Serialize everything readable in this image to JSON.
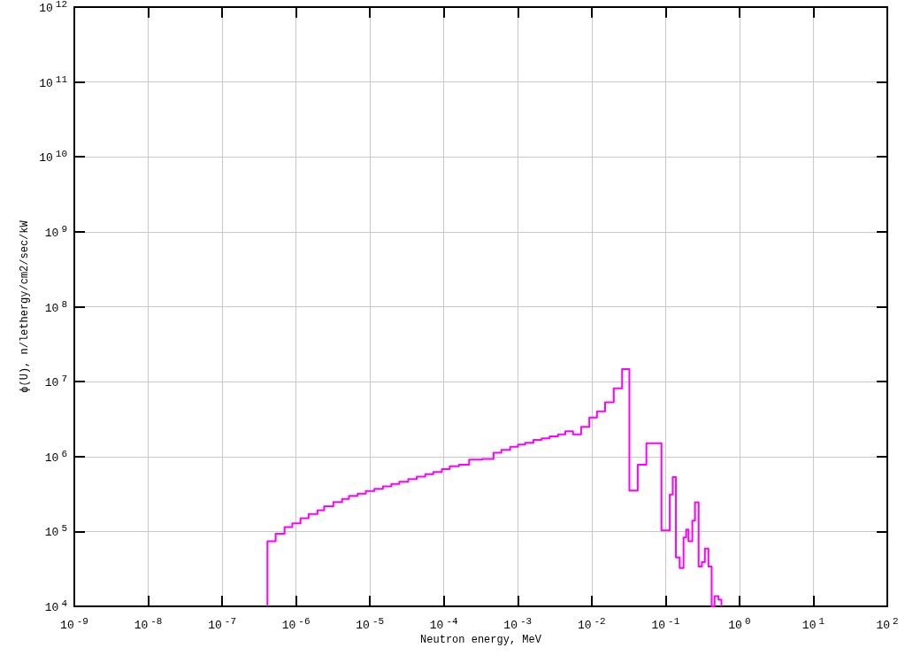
{
  "chart_data": {
    "type": "histogram",
    "xlabel": "Neutron energy, MeV",
    "ylabel": "ϕ(U), n/lethergy/cm2/sec/kW",
    "log": "xy",
    "grid": true,
    "xlim": [
      1e-09,
      100
    ],
    "ylim": [
      10000,
      1000000000000.0
    ],
    "xticks": [
      {
        "value": 1e-09,
        "label": "10$^{-9}$"
      },
      {
        "value": 1e-08,
        "label": "10$^{-8}$"
      },
      {
        "value": 1e-07,
        "label": "10$^{-7}$"
      },
      {
        "value": 1e-06,
        "label": "10$^{-6}$"
      },
      {
        "value": 1e-05,
        "label": "10$^{-5}$"
      },
      {
        "value": 0.0001,
        "label": "10$^{-4}$"
      },
      {
        "value": 0.001,
        "label": "10$^{-3}$"
      },
      {
        "value": 0.01,
        "label": "10$^{-2}$"
      },
      {
        "value": 0.1,
        "label": "10$^{-1}$"
      },
      {
        "value": 1,
        "label": "10$^{0}$"
      },
      {
        "value": 10,
        "label": "10$^{1}$"
      },
      {
        "value": 100,
        "label": "10$^{2}$"
      }
    ],
    "yticks": [
      {
        "value": 10000,
        "label": "10$^{4}$"
      },
      {
        "value": 100000,
        "label": "10$^{5}$"
      },
      {
        "value": 1000000,
        "label": "10$^{6}$"
      },
      {
        "value": 10000000,
        "label": "10$^{7}$"
      },
      {
        "value": 100000000,
        "label": "10$^{8}$"
      },
      {
        "value": 1000000000,
        "label": "10$^{9}$"
      },
      {
        "value": 10000000000,
        "label": "10$^{10}$"
      },
      {
        "value": 100000000000,
        "label": "10$^{11}$"
      },
      {
        "value": 1000000000000,
        "label": "10$^{12}$"
      }
    ],
    "color": "#ff00ff",
    "bins": [
      4.1e-07,
      5.3e-07,
      7e-07,
      8.9e-07,
      1.15e-06,
      1.48e-06,
      1.95e-06,
      2.4e-06,
      3.2e-06,
      4.2e-06,
      5.2e-06,
      6.8e-06,
      8.8e-06,
      1.15e-05,
      1.5e-05,
      1.95e-05,
      2.5e-05,
      3.3e-05,
      4.3e-05,
      5.6e-05,
      7.2e-05,
      9.4e-05,
      0.00012,
      0.00016,
      0.00022,
      0.00033,
      0.00047,
      0.0006,
      0.00079,
      0.00101,
      0.00126,
      0.00163,
      0.0021,
      0.0027,
      0.0035,
      0.0044,
      0.0056,
      0.0072,
      0.0093,
      0.0118,
      0.0152,
      0.0199,
      0.0258,
      0.0324,
      0.042,
      0.055,
      0.088,
      0.114,
      0.125,
      0.138,
      0.155,
      0.175,
      0.19,
      0.204,
      0.23,
      0.25,
      0.28,
      0.31,
      0.34,
      0.38,
      0.42,
      0.46,
      0.52,
      0.57
    ],
    "values": [
      74000,
      93000,
      114000,
      128000,
      150000,
      171000,
      191000,
      216000,
      247000,
      270000,
      297000,
      320000,
      345000,
      370000,
      400000,
      430000,
      460000,
      500000,
      540000,
      580000,
      620000,
      680000,
      740000,
      780000,
      910000,
      930000,
      1120000,
      1230000,
      1350000,
      1440000,
      1520000,
      1670000,
      1750000,
      1860000,
      1980000,
      2170000,
      1980000,
      2490000,
      3300000,
      4000000,
      5300000,
      8100000,
      14700000,
      350000,
      780000,
      1500000,
      103000,
      310000,
      530000,
      45000,
      32500,
      83000,
      106000,
      74000,
      139000,
      244000,
      34000,
      39000,
      59000,
      34000,
      10000,
      13700,
      12300
    ]
  }
}
